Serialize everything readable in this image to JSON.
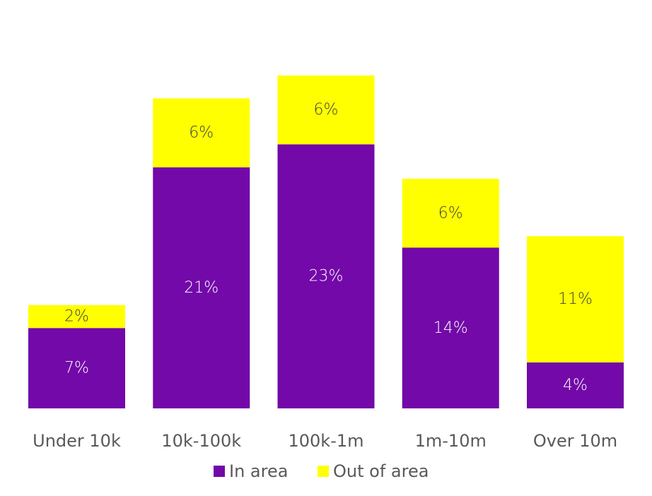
{
  "chart_data": {
    "type": "bar",
    "stacked": true,
    "title": "",
    "xlabel": "",
    "ylabel": "",
    "categories": [
      "Under 10k",
      "10k-100k",
      "100k-1m",
      "1m-10m",
      "Over 10m"
    ],
    "series": [
      {
        "name": "In area",
        "color": "#7209a8",
        "label_color": "#ffffff",
        "values": [
          7,
          21,
          23,
          14,
          4
        ],
        "labels": [
          "7%",
          "21%",
          "23%",
          "14%",
          "4%"
        ]
      },
      {
        "name": "Out of area",
        "color": "#ffff00",
        "label_color": "#404040",
        "values": [
          2,
          6,
          6,
          6,
          11
        ],
        "labels": [
          "2%",
          "6%",
          "6%",
          "6%",
          "11%"
        ]
      }
    ],
    "ylim": [
      0,
      30
    ],
    "grid": false,
    "legend_position": "bottom"
  }
}
